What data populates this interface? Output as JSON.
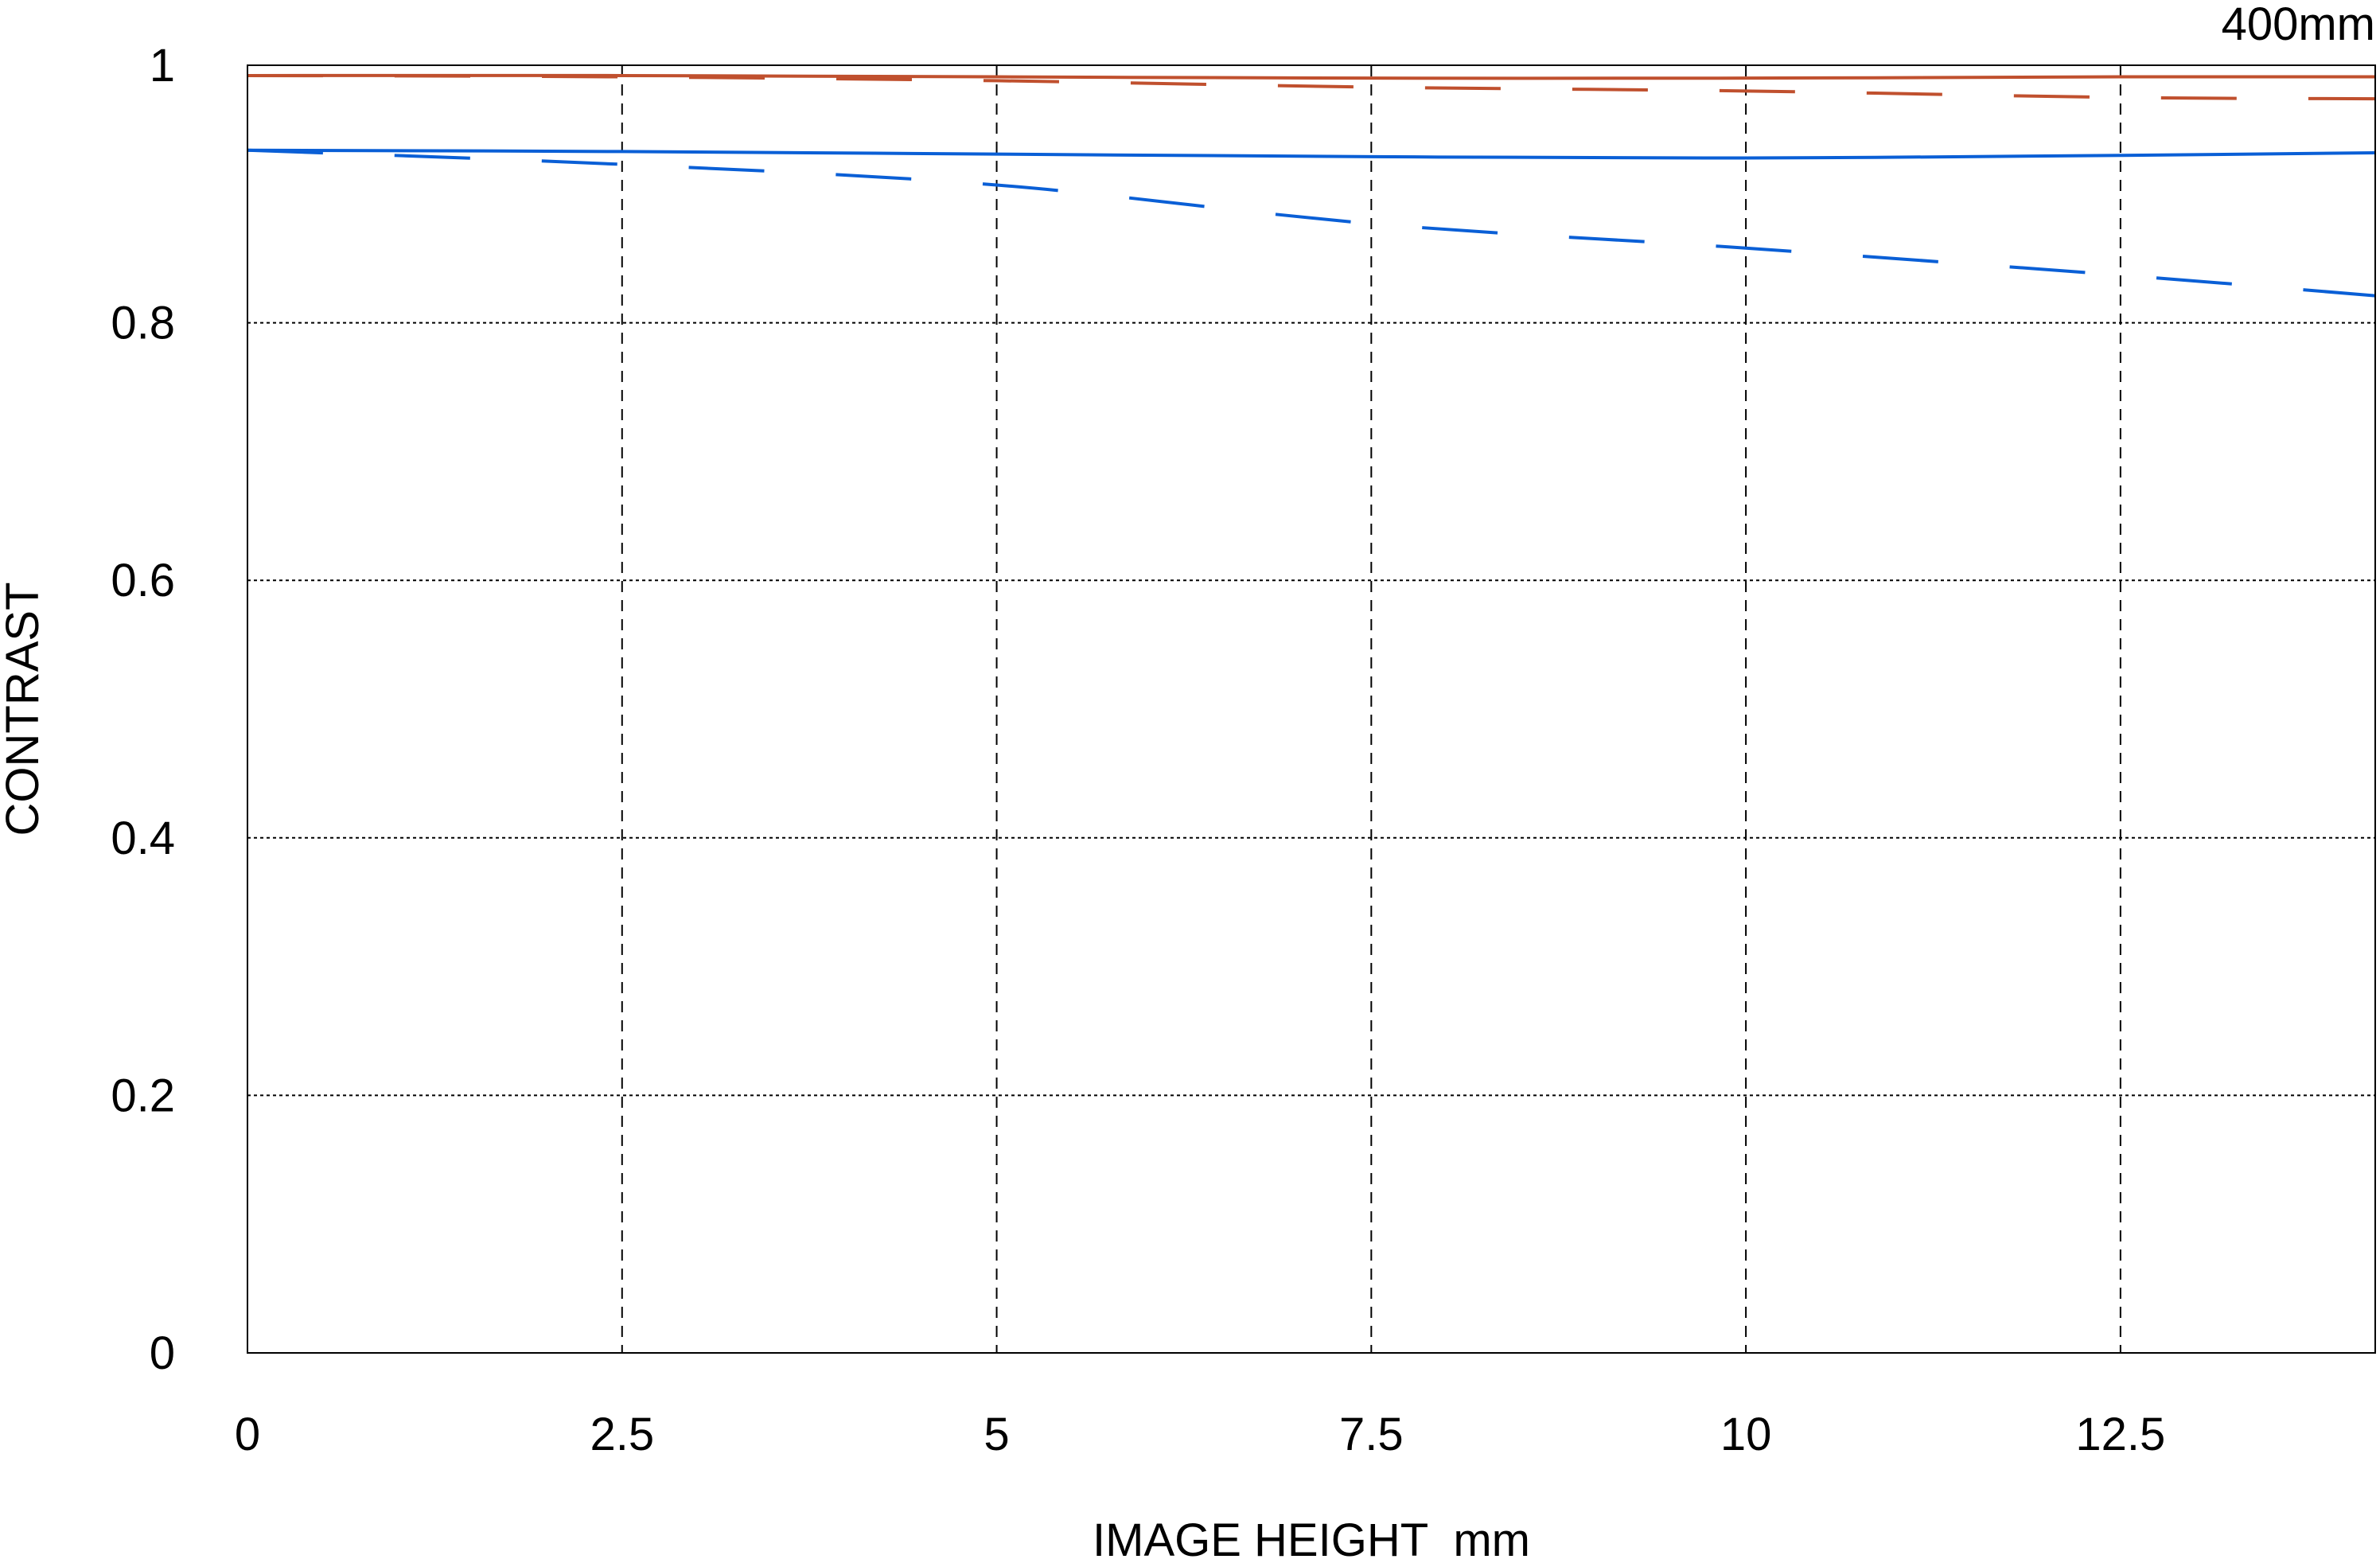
{
  "chart_data": {
    "type": "line",
    "title": "400mm",
    "xlabel": "IMAGE HEIGHT  mm",
    "ylabel": "CONTRAST",
    "xlim": [
      0,
      14.2
    ],
    "ylim": [
      0,
      1
    ],
    "x_ticks": [
      "0",
      "2.5",
      "5",
      "7.5",
      "10",
      "12.5"
    ],
    "x_tick_values": [
      0,
      2.5,
      5,
      7.5,
      10,
      12.5
    ],
    "y_ticks": [
      "0",
      "0.2",
      "0.4",
      "0.6",
      "0.8",
      "1"
    ],
    "y_tick_values": [
      0,
      0.2,
      0.4,
      0.6,
      0.8,
      1
    ],
    "grid": true,
    "x": [
      0,
      2.5,
      5,
      7.5,
      10,
      12.5,
      14.2
    ],
    "series": [
      {
        "color": "#c0502e",
        "dash": "solid",
        "values": [
          0.992,
          0.992,
          0.991,
          0.99,
          0.99,
          0.991,
          0.991
        ]
      },
      {
        "color": "#c0502e",
        "dash": "dashed",
        "values": [
          0.992,
          0.991,
          0.988,
          0.983,
          0.98,
          0.975,
          0.974
        ]
      },
      {
        "color": "#0a5fd6",
        "dash": "solid",
        "values": [
          0.934,
          0.933,
          0.931,
          0.929,
          0.928,
          0.93,
          0.932
        ]
      },
      {
        "color": "#0a5fd6",
        "dash": "dashed",
        "values": [
          0.934,
          0.923,
          0.907,
          0.877,
          0.858,
          0.837,
          0.821
        ]
      }
    ]
  }
}
